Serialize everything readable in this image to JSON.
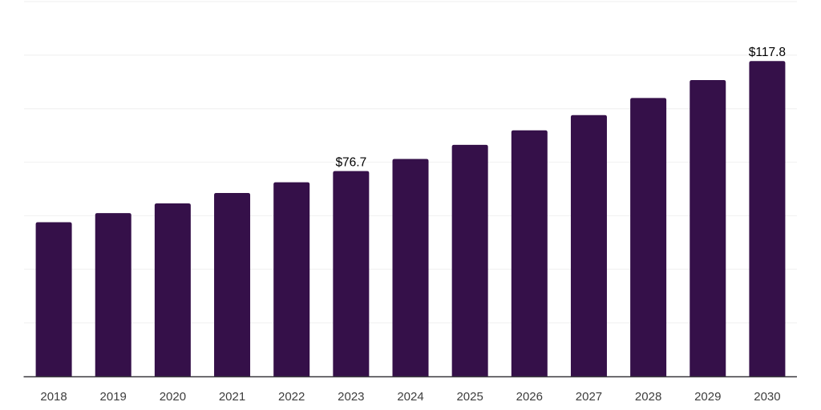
{
  "chart_data": {
    "type": "bar",
    "title": "",
    "xlabel": "",
    "ylabel": "",
    "categories": [
      "2018",
      "2019",
      "2020",
      "2021",
      "2022",
      "2023",
      "2024",
      "2025",
      "2026",
      "2027",
      "2028",
      "2029",
      "2030"
    ],
    "values": [
      57.6,
      61.0,
      64.6,
      68.5,
      72.5,
      76.7,
      81.2,
      86.5,
      91.9,
      97.6,
      104.0,
      110.7,
      117.8
    ],
    "data_labels": {
      "2023": "$76.7",
      "2030": "$117.8"
    },
    "ylim": [
      0,
      140
    ],
    "gridline_step": 20,
    "grid": true,
    "legend": false,
    "colors": {
      "bar": "#351049",
      "gridline": "#f2f2f2",
      "axis_line": "#38373c",
      "tick_label": "#3d3d3d",
      "data_label": "#000000",
      "background": "#ffffff"
    }
  }
}
